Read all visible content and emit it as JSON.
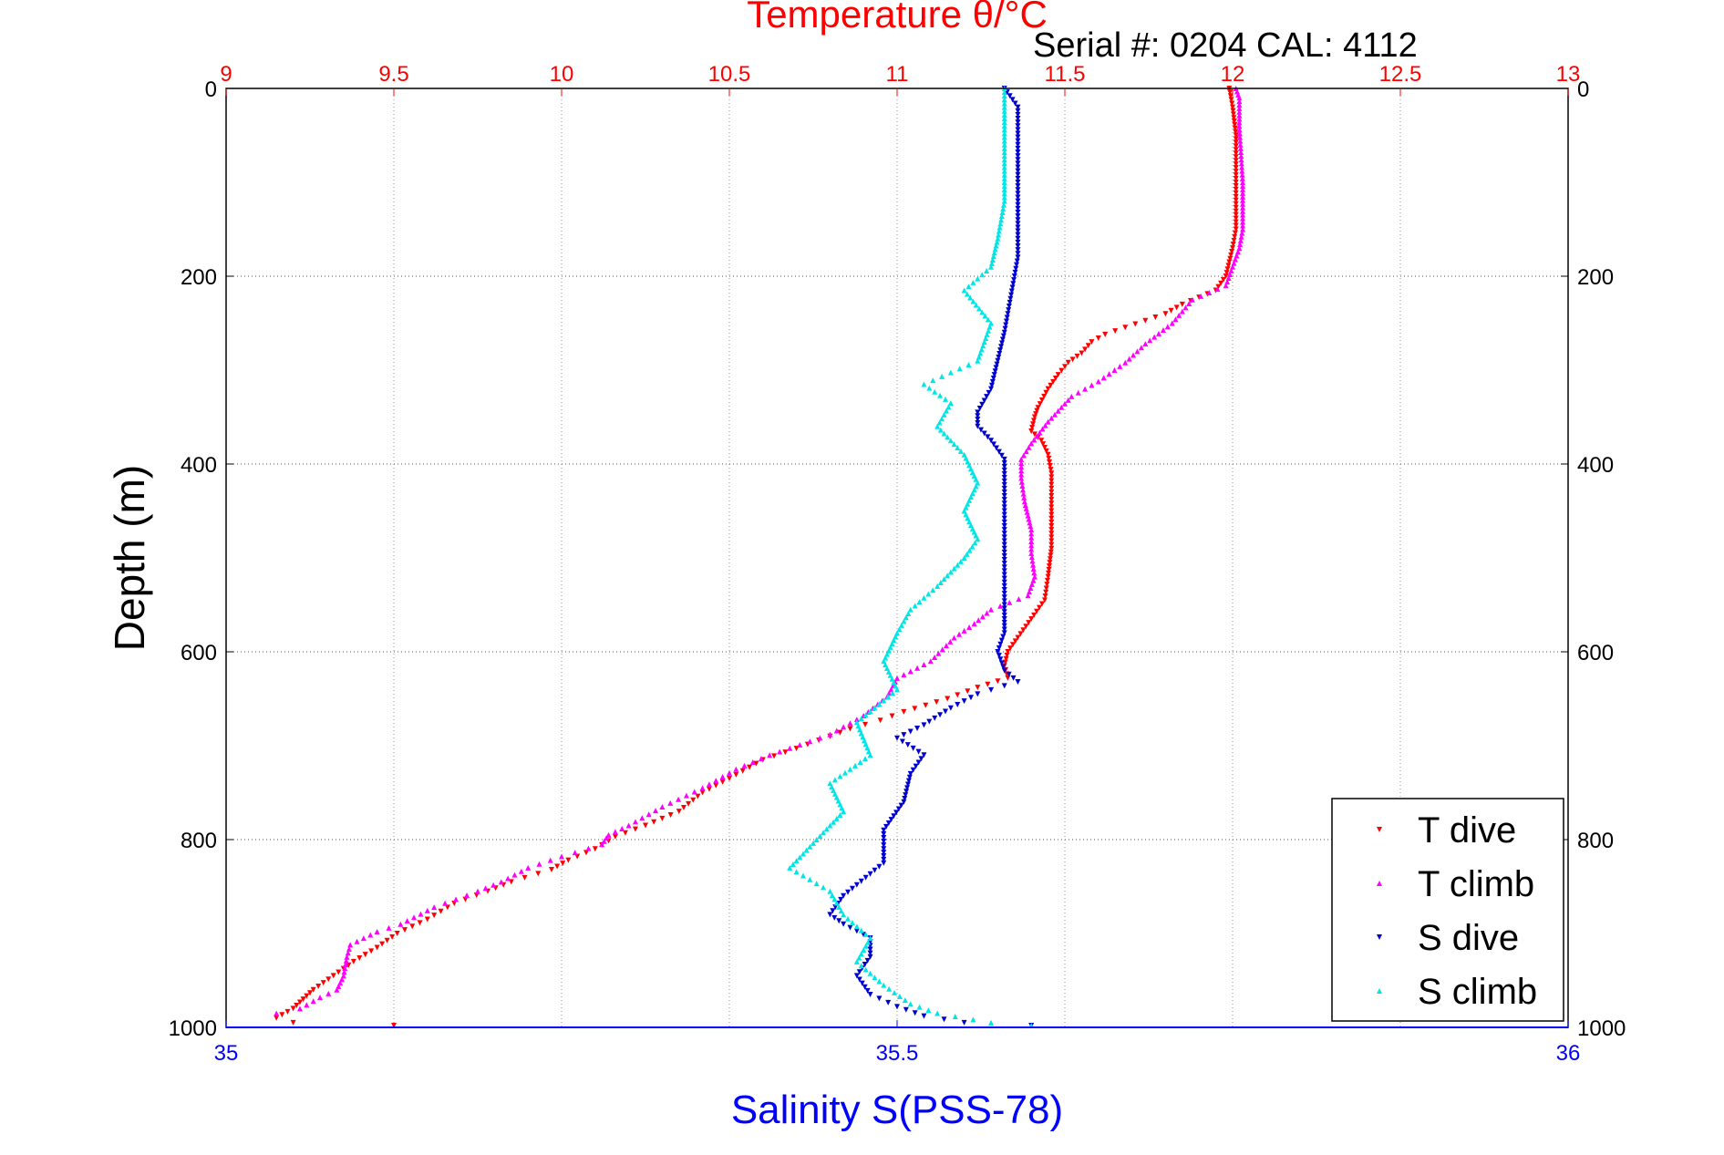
{
  "chart_data": {
    "type": "scatter",
    "title": "Temperature θ/°C",
    "subtitle": "Serial #: 0204  CAL: 4112",
    "ylabel": "Depth (m)",
    "xlabel_bottom": "Salinity S(PSS-78)",
    "xlabel_top": "Temperature θ/°C",
    "y_axis": {
      "range": [
        0,
        1000
      ],
      "reversed": true,
      "ticks": [
        "0",
        "200",
        "400",
        "600",
        "800",
        "1000"
      ]
    },
    "x_axis_top": {
      "range": [
        9,
        13
      ],
      "ticks": [
        "9",
        "9.5",
        "10",
        "10.5",
        "11",
        "11.5",
        "12",
        "12.5",
        "13"
      ],
      "color": "#ff0000"
    },
    "x_axis_bottom": {
      "range": [
        35,
        36
      ],
      "ticks": [
        "35",
        "35.5",
        "36"
      ],
      "color": "#0000ff"
    },
    "grid": true,
    "legend_position": "bottom-right",
    "series": [
      {
        "name": "T dive",
        "axis": "temperature",
        "color": "#ff0000",
        "marker": "triangle-down",
        "points": [
          [
            11.99,
            0
          ],
          [
            12.0,
            20
          ],
          [
            12.01,
            50
          ],
          [
            12.01,
            100
          ],
          [
            12.01,
            150
          ],
          [
            12.0,
            170
          ],
          [
            11.99,
            185
          ],
          [
            11.98,
            200
          ],
          [
            11.95,
            215
          ],
          [
            11.85,
            230
          ],
          [
            11.8,
            240
          ],
          [
            11.62,
            262
          ],
          [
            11.58,
            270
          ],
          [
            11.55,
            282
          ],
          [
            11.51,
            292
          ],
          [
            11.48,
            305
          ],
          [
            11.45,
            320
          ],
          [
            11.42,
            340
          ],
          [
            11.41,
            350
          ],
          [
            11.4,
            365
          ],
          [
            11.43,
            375
          ],
          [
            11.45,
            390
          ],
          [
            11.46,
            410
          ],
          [
            11.46,
            450
          ],
          [
            11.46,
            490
          ],
          [
            11.45,
            520
          ],
          [
            11.44,
            545
          ],
          [
            11.4,
            565
          ],
          [
            11.36,
            585
          ],
          [
            11.33,
            600
          ],
          [
            11.32,
            615
          ],
          [
            11.33,
            628
          ],
          [
            11.24,
            638
          ],
          [
            11.15,
            650
          ],
          [
            11.02,
            664
          ],
          [
            10.95,
            673
          ],
          [
            10.86,
            682
          ],
          [
            10.8,
            690
          ],
          [
            10.7,
            703
          ],
          [
            10.6,
            715
          ],
          [
            10.5,
            735
          ],
          [
            10.42,
            750
          ],
          [
            10.35,
            770
          ],
          [
            10.25,
            785
          ],
          [
            10.16,
            797
          ],
          [
            10.1,
            810
          ],
          [
            10.02,
            822
          ],
          [
            9.97,
            832
          ],
          [
            9.85,
            845
          ],
          [
            9.78,
            855
          ],
          [
            9.68,
            868
          ],
          [
            9.6,
            885
          ],
          [
            9.51,
            900
          ],
          [
            9.45,
            915
          ],
          [
            9.38,
            930
          ],
          [
            9.32,
            945
          ],
          [
            9.26,
            960
          ],
          [
            9.23,
            970
          ],
          [
            9.2,
            980
          ],
          [
            9.15,
            990
          ],
          [
            9.2,
            995
          ],
          [
            9.5,
            998
          ]
        ]
      },
      {
        "name": "T climb",
        "axis": "temperature",
        "color": "#ff00ff",
        "marker": "triangle-up",
        "points": [
          [
            12.01,
            0
          ],
          [
            12.02,
            10
          ],
          [
            12.02,
            40
          ],
          [
            12.03,
            100
          ],
          [
            12.03,
            150
          ],
          [
            12.02,
            170
          ],
          [
            12.0,
            190
          ],
          [
            11.98,
            210
          ],
          [
            11.88,
            225
          ],
          [
            11.82,
            250
          ],
          [
            11.74,
            272
          ],
          [
            11.68,
            292
          ],
          [
            11.6,
            312
          ],
          [
            11.52,
            328
          ],
          [
            11.45,
            355
          ],
          [
            11.4,
            378
          ],
          [
            11.37,
            395
          ],
          [
            11.37,
            415
          ],
          [
            11.38,
            440
          ],
          [
            11.4,
            470
          ],
          [
            11.4,
            495
          ],
          [
            11.41,
            520
          ],
          [
            11.39,
            540
          ],
          [
            11.28,
            555
          ],
          [
            11.23,
            570
          ],
          [
            11.17,
            585
          ],
          [
            11.1,
            610
          ],
          [
            11.0,
            628
          ],
          [
            10.97,
            648
          ],
          [
            10.9,
            668
          ],
          [
            10.8,
            688
          ],
          [
            10.62,
            710
          ],
          [
            10.52,
            725
          ],
          [
            10.42,
            745
          ],
          [
            10.3,
            765
          ],
          [
            10.2,
            785
          ],
          [
            10.14,
            795
          ],
          [
            10.12,
            805
          ],
          [
            10.0,
            818
          ],
          [
            9.9,
            830
          ],
          [
            9.82,
            845
          ],
          [
            9.75,
            855
          ],
          [
            9.62,
            872
          ],
          [
            9.52,
            890
          ],
          [
            9.45,
            898
          ],
          [
            9.37,
            912
          ],
          [
            9.36,
            925
          ],
          [
            9.35,
            945
          ],
          [
            9.33,
            960
          ],
          [
            9.28,
            968
          ],
          [
            9.22,
            980
          ],
          [
            9.15,
            985
          ]
        ]
      },
      {
        "name": "S dive",
        "axis": "salinity",
        "color": "#0000cc",
        "marker": "triangle-down",
        "points": [
          [
            35.58,
            0
          ],
          [
            35.59,
            20
          ],
          [
            35.59,
            60
          ],
          [
            35.59,
            120
          ],
          [
            35.59,
            180
          ],
          [
            35.585,
            220
          ],
          [
            35.58,
            260
          ],
          [
            35.575,
            290
          ],
          [
            35.57,
            320
          ],
          [
            35.56,
            345
          ],
          [
            35.56,
            360
          ],
          [
            35.57,
            375
          ],
          [
            35.58,
            395
          ],
          [
            35.58,
            430
          ],
          [
            35.58,
            470
          ],
          [
            35.58,
            510
          ],
          [
            35.58,
            550
          ],
          [
            35.58,
            580
          ],
          [
            35.575,
            600
          ],
          [
            35.58,
            620
          ],
          [
            35.59,
            632
          ],
          [
            35.56,
            645
          ],
          [
            35.54,
            660
          ],
          [
            35.52,
            678
          ],
          [
            35.5,
            692
          ],
          [
            35.52,
            710
          ],
          [
            35.51,
            730
          ],
          [
            35.505,
            760
          ],
          [
            35.49,
            790
          ],
          [
            35.49,
            810
          ],
          [
            35.49,
            825
          ],
          [
            35.46,
            860
          ],
          [
            35.45,
            880
          ],
          [
            35.46,
            890
          ],
          [
            35.48,
            905
          ],
          [
            35.48,
            925
          ],
          [
            35.47,
            945
          ],
          [
            35.48,
            965
          ],
          [
            35.5,
            978
          ],
          [
            35.52,
            988
          ],
          [
            35.55,
            995
          ],
          [
            35.6,
            998
          ]
        ]
      },
      {
        "name": "S climb",
        "axis": "salinity",
        "color": "#00e5e5",
        "marker": "triangle-up",
        "points": [
          [
            35.58,
            0
          ],
          [
            35.58,
            40
          ],
          [
            35.58,
            80
          ],
          [
            35.58,
            120
          ],
          [
            35.575,
            160
          ],
          [
            35.57,
            190
          ],
          [
            35.55,
            215
          ],
          [
            35.57,
            250
          ],
          [
            35.56,
            290
          ],
          [
            35.52,
            315
          ],
          [
            35.54,
            335
          ],
          [
            35.53,
            360
          ],
          [
            35.55,
            390
          ],
          [
            35.56,
            420
          ],
          [
            35.55,
            450
          ],
          [
            35.56,
            480
          ],
          [
            35.55,
            500
          ],
          [
            35.53,
            530
          ],
          [
            35.51,
            555
          ],
          [
            35.5,
            580
          ],
          [
            35.49,
            610
          ],
          [
            35.5,
            640
          ],
          [
            35.47,
            675
          ],
          [
            35.48,
            710
          ],
          [
            35.45,
            740
          ],
          [
            35.46,
            770
          ],
          [
            35.44,
            800
          ],
          [
            35.42,
            830
          ],
          [
            35.45,
            855
          ],
          [
            35.46,
            880
          ],
          [
            35.48,
            905
          ],
          [
            35.47,
            930
          ],
          [
            35.49,
            955
          ],
          [
            35.51,
            975
          ],
          [
            35.53,
            985
          ],
          [
            35.57,
            995
          ],
          [
            35.6,
            998
          ]
        ]
      }
    ]
  }
}
